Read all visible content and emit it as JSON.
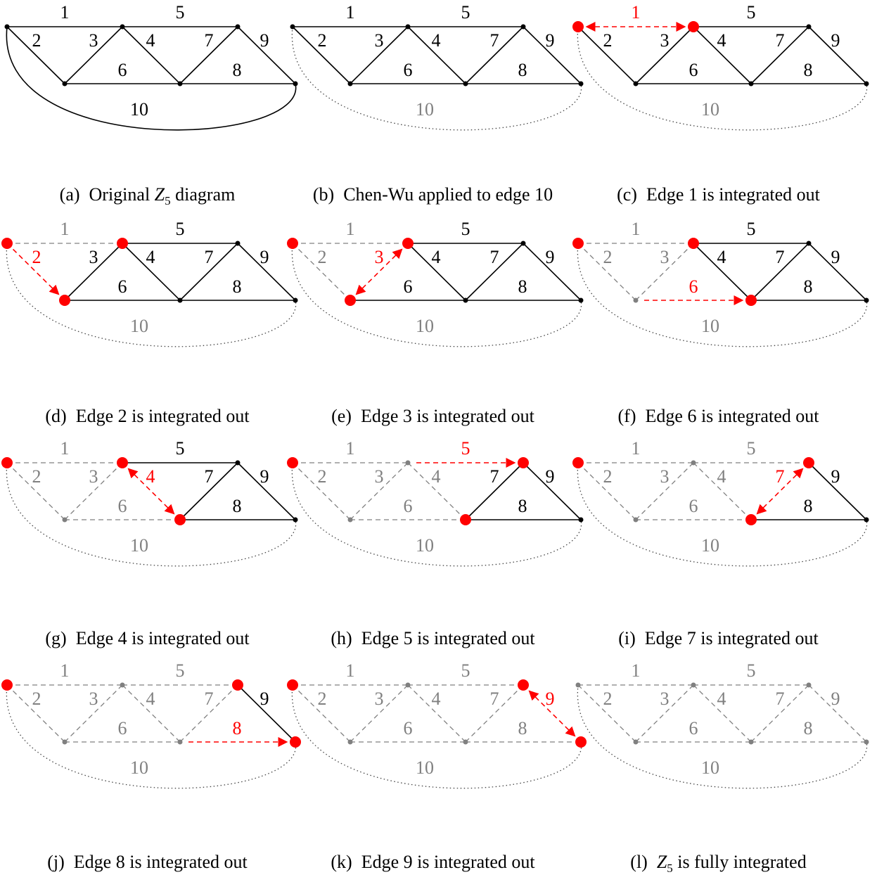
{
  "colors": {
    "active": "#000000",
    "integrated": "#808080",
    "current": "#ff0000",
    "dotted": "#444444"
  },
  "graph": {
    "nodes": [
      "A",
      "B",
      "C",
      "D",
      "E",
      "F"
    ],
    "edges": [
      {
        "id": "1",
        "from": "A",
        "to": "B"
      },
      {
        "id": "2",
        "from": "A",
        "to": "D"
      },
      {
        "id": "3",
        "from": "D",
        "to": "B"
      },
      {
        "id": "4",
        "from": "B",
        "to": "E"
      },
      {
        "id": "5",
        "from": "B",
        "to": "C"
      },
      {
        "id": "6",
        "from": "D",
        "to": "E"
      },
      {
        "id": "7",
        "from": "E",
        "to": "C"
      },
      {
        "id": "8",
        "from": "E",
        "to": "F"
      },
      {
        "id": "9",
        "from": "C",
        "to": "F"
      },
      {
        "id": "10",
        "from": "A",
        "to": "F"
      }
    ]
  },
  "panels": [
    {
      "letter": "(a)",
      "caption": "Original",
      "math": "Z",
      "math_sub": "5",
      "caption_tail": "diagram",
      "dashed": [],
      "current": null,
      "direction": null,
      "red_nodes": [],
      "gray_nodes": [],
      "edge10": "solid"
    },
    {
      "letter": "(b)",
      "caption": "Chen-Wu applied to edge 10",
      "dashed": [],
      "current": null,
      "direction": null,
      "red_nodes": [],
      "gray_nodes": [],
      "edge10": "dotted"
    },
    {
      "letter": "(c)",
      "caption": "Edge 1 is integrated out",
      "dashed": [],
      "current": "1",
      "direction": "both",
      "red_nodes": [
        "A",
        "B"
      ],
      "gray_nodes": [],
      "edge10": "dotted"
    },
    {
      "letter": "(d)",
      "caption": "Edge 2 is integrated out",
      "dashed": [
        "1"
      ],
      "current": "2",
      "direction": "forward",
      "red_nodes": [
        "A",
        "B",
        "D"
      ],
      "gray_nodes": [],
      "edge10": "dotted"
    },
    {
      "letter": "(e)",
      "caption": "Edge 3 is integrated out",
      "dashed": [
        "1",
        "2"
      ],
      "current": "3",
      "direction": "both",
      "red_nodes": [
        "A",
        "B",
        "D"
      ],
      "gray_nodes": [],
      "edge10": "dotted"
    },
    {
      "letter": "(f)",
      "caption": "Edge 6 is integrated out",
      "dashed": [
        "1",
        "2",
        "3"
      ],
      "current": "6",
      "direction": "forward",
      "red_nodes": [
        "A",
        "B",
        "E"
      ],
      "gray_nodes": [
        "D"
      ],
      "edge10": "dotted"
    },
    {
      "letter": "(g)",
      "caption": "Edge 4 is integrated out",
      "dashed": [
        "1",
        "2",
        "3",
        "6"
      ],
      "current": "4",
      "direction": "both",
      "red_nodes": [
        "A",
        "B",
        "E"
      ],
      "gray_nodes": [
        "D"
      ],
      "edge10": "dotted"
    },
    {
      "letter": "(h)",
      "caption": "Edge 5 is integrated out",
      "dashed": [
        "1",
        "2",
        "3",
        "6",
        "4"
      ],
      "current": "5",
      "direction": "forward",
      "red_nodes": [
        "A",
        "C",
        "E"
      ],
      "gray_nodes": [
        "D",
        "B"
      ],
      "edge10": "dotted"
    },
    {
      "letter": "(i)",
      "caption": "Edge 7 is integrated out",
      "dashed": [
        "1",
        "2",
        "3",
        "6",
        "4",
        "5"
      ],
      "current": "7",
      "direction": "both",
      "red_nodes": [
        "A",
        "C",
        "E"
      ],
      "gray_nodes": [
        "D",
        "B"
      ],
      "edge10": "dotted"
    },
    {
      "letter": "(j)",
      "caption": "Edge 8 is integrated out",
      "dashed": [
        "1",
        "2",
        "3",
        "6",
        "4",
        "5",
        "7"
      ],
      "current": "8",
      "direction": "forward",
      "red_nodes": [
        "A",
        "C",
        "F"
      ],
      "gray_nodes": [
        "D",
        "B",
        "E"
      ],
      "edge10": "dotted"
    },
    {
      "letter": "(k)",
      "caption": "Edge 9 is integrated out",
      "dashed": [
        "1",
        "2",
        "3",
        "6",
        "4",
        "5",
        "7",
        "8"
      ],
      "current": "9",
      "direction": "both",
      "red_nodes": [
        "A",
        "C",
        "F"
      ],
      "gray_nodes": [
        "D",
        "B",
        "E"
      ],
      "edge10": "dotted"
    },
    {
      "letter": "(l)",
      "caption_head": "",
      "math": "Z",
      "math_sub": "5",
      "caption": "is fully integrated",
      "dashed": [
        "1",
        "2",
        "3",
        "6",
        "4",
        "5",
        "7",
        "8",
        "9"
      ],
      "current": null,
      "direction": null,
      "red_nodes": [],
      "gray_nodes": [
        "A",
        "B",
        "C",
        "D",
        "E",
        "F"
      ],
      "edge10": "dotted"
    }
  ]
}
